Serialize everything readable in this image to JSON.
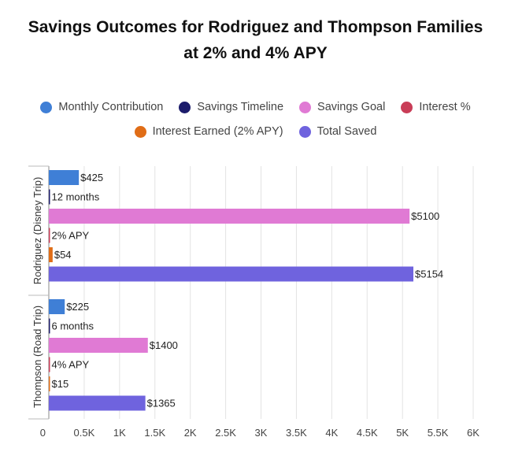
{
  "chart_data": {
    "type": "bar",
    "orientation": "horizontal",
    "title_line1": "Savings Outcomes for Rodriguez and Thompson Families",
    "title_line2": "at 2% and 4% APY",
    "categories": [
      "Rodriguez (Disney Trip)",
      "Thompson (Road Trip)"
    ],
    "series": [
      {
        "name": "Monthly Contribution",
        "color": "#3f7fd6",
        "values": [
          425,
          225
        ],
        "labels": [
          "$425",
          "$225"
        ]
      },
      {
        "name": "Savings Timeline",
        "color": "#1c1c6b",
        "values": [
          12,
          6
        ],
        "labels": [
          "12 months",
          "6 months"
        ]
      },
      {
        "name": "Savings Goal",
        "color": "#e07ad4",
        "values": [
          5100,
          1400
        ],
        "labels": [
          "$5100",
          "$1400"
        ]
      },
      {
        "name": "Interest %",
        "color": "#c93d57",
        "values": [
          2,
          4
        ],
        "labels": [
          "2% APY",
          "4% APY"
        ]
      },
      {
        "name": "Interest Earned (2% APY)",
        "color": "#e06d17",
        "values": [
          54,
          15
        ],
        "labels": [
          "$54",
          "$15"
        ]
      },
      {
        "name": "Total Saved",
        "color": "#6f63de",
        "values": [
          5154,
          1365
        ],
        "labels": [
          "$5154",
          "$1365"
        ]
      }
    ],
    "xlim": [
      0,
      6000
    ],
    "xticks": [
      0,
      500,
      1000,
      1500,
      2000,
      2500,
      3000,
      3500,
      4000,
      4500,
      5000,
      5500,
      6000
    ],
    "xtick_labels": [
      "0",
      "0.5K",
      "1K",
      "1.5K",
      "2K",
      "2.5K",
      "3K",
      "3.5K",
      "4K",
      "4.5K",
      "5K",
      "5.5K",
      "6K"
    ],
    "grid": true,
    "legend_position": "top"
  }
}
